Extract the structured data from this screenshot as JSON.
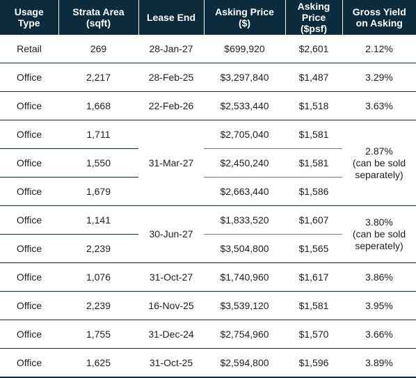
{
  "table": {
    "headers": [
      "Usage\nType",
      "Strata Area\n(sqft)",
      "Lease End",
      "Asking Price\n($)",
      "Asking\nPrice\n($psf)",
      "Gross Yield\non Asking"
    ],
    "rows": [
      {
        "usage": "Retail",
        "area": "269",
        "lease_end": "28-Jan-27",
        "price": "$699,920",
        "psf": "$2,601",
        "yield": "2.12%"
      },
      {
        "usage": "Office",
        "area": "2,217",
        "lease_end": "28-Feb-25",
        "price": "$3,297,840",
        "psf": "$1,487",
        "yield": "3.29%"
      },
      {
        "usage": "Office",
        "area": "1,668",
        "lease_end": "22-Feb-26",
        "price": "$2,533,440",
        "psf": "$1,518",
        "yield": "3.63%"
      },
      {
        "usage": "Office",
        "area": "1,711",
        "lease_end": "31-Mar-27",
        "price": "$2,705,040",
        "psf": "$1,581",
        "yield": "2.87%\n(can be sold\nseparately)"
      },
      {
        "usage": "Office",
        "area": "1,550",
        "price": "$2,450,240",
        "psf": "$1,581"
      },
      {
        "usage": "Office",
        "area": "1,679",
        "price": "$2,663,440",
        "psf": "$1,586"
      },
      {
        "usage": "Office",
        "area": "1,141",
        "lease_end": "30-Jun-27",
        "price": "$1,833,520",
        "psf": "$1,607",
        "yield": "3.80%\n(can be sold\nseperately)"
      },
      {
        "usage": "Office",
        "area": "2,239",
        "price": "$3,504,800",
        "psf": "$1,565"
      },
      {
        "usage": "Office",
        "area": "1,076",
        "lease_end": "31-Oct-27",
        "price": "$1,740,960",
        "psf": "$1,617",
        "yield": "3.86%"
      },
      {
        "usage": "Office",
        "area": "2,239",
        "lease_end": "16-Nov-25",
        "price": "$3,539,120",
        "psf": "$1,581",
        "yield": "3.95%"
      },
      {
        "usage": "Office",
        "area": "1,755",
        "lease_end": "31-Dec-24",
        "price": "$2,754,960",
        "psf": "$1,570",
        "yield": "3.66%"
      },
      {
        "usage": "Office",
        "area": "1,625",
        "lease_end": "31-Oct-25",
        "price": "$2,594,800",
        "psf": "$1,596",
        "yield": "3.89%"
      }
    ]
  },
  "colors": {
    "header_bg": "#0c2b3d",
    "header_text": "#ffffff",
    "body_text": "#1e1e1e"
  }
}
